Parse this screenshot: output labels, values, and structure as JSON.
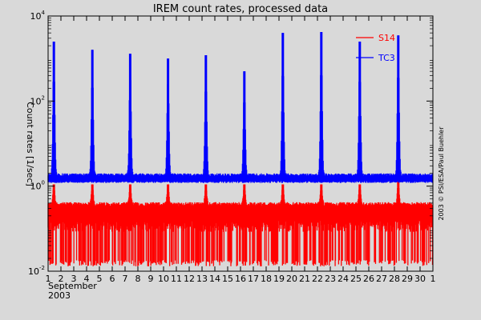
{
  "chart_data": {
    "type": "line",
    "title": "IREM count rates, processed data",
    "ylabel": "Count rates [1/sec]",
    "xlabel_month": "September",
    "xlabel_year": "2003",
    "credit": "2003 © PSI/ESA/Paul Buehler",
    "y_scale": "log",
    "ylim": [
      0.01,
      10000
    ],
    "y_ticks": [
      {
        "value": 0.01,
        "mantissa": "10",
        "exponent": "-2"
      },
      {
        "value": 1,
        "mantissa": "10",
        "exponent": "0"
      },
      {
        "value": 100,
        "mantissa": "10",
        "exponent": "2"
      },
      {
        "value": 10000,
        "mantissa": "10",
        "exponent": "4"
      }
    ],
    "xlim": [
      1,
      31
    ],
    "x_ticks": [
      "1",
      "2",
      "3",
      "4",
      "5",
      "6",
      "7",
      "8",
      "9",
      "10",
      "11",
      "12",
      "13",
      "14",
      "15",
      "16",
      "17",
      "18",
      "19",
      "20",
      "21",
      "22",
      "23",
      "24",
      "25",
      "26",
      "27",
      "28",
      "29",
      "30",
      "1"
    ],
    "grid": false,
    "legend_position": "top-right",
    "series": [
      {
        "name": "S14",
        "color": "#ff0000",
        "baseline": 0.2,
        "baseline_max": 0.4,
        "floor": 0.013,
        "peaks": [
          {
            "x": 1.45,
            "y": 1.1
          },
          {
            "x": 4.45,
            "y": 1.1
          },
          {
            "x": 7.4,
            "y": 1.1
          },
          {
            "x": 10.35,
            "y": 1.1
          },
          {
            "x": 13.3,
            "y": 1.1
          },
          {
            "x": 16.3,
            "y": 1.1
          },
          {
            "x": 19.3,
            "y": 1.1
          },
          {
            "x": 22.3,
            "y": 1.1
          },
          {
            "x": 25.3,
            "y": 1.1
          },
          {
            "x": 28.3,
            "y": 1.3
          }
        ]
      },
      {
        "name": "TC3",
        "color": "#0000ff",
        "baseline": 1.4,
        "baseline_max": 1.9,
        "peaks": [
          {
            "x": 1.45,
            "y": 2500
          },
          {
            "x": 4.45,
            "y": 1600
          },
          {
            "x": 7.4,
            "y": 1300
          },
          {
            "x": 10.35,
            "y": 1000
          },
          {
            "x": 13.3,
            "y": 1200
          },
          {
            "x": 16.3,
            "y": 500
          },
          {
            "x": 19.3,
            "y": 4000
          },
          {
            "x": 22.3,
            "y": 4200
          },
          {
            "x": 25.3,
            "y": 2500
          },
          {
            "x": 28.3,
            "y": 3500
          }
        ]
      }
    ]
  }
}
